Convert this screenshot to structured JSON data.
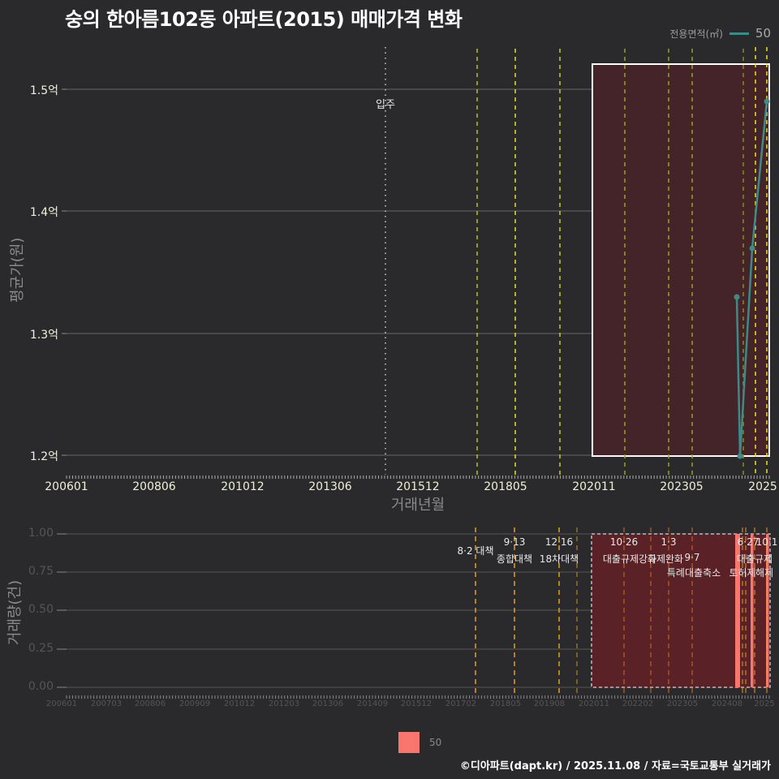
{
  "title": "숭의 한아름102동 아파트(2015) 매매가격 변화",
  "legend_top": {
    "label": "전용면적(㎡)",
    "value": "50",
    "color": "#3d8a88"
  },
  "legend_bottom": {
    "value": "50",
    "color": "#f8766d"
  },
  "footer": "©디아파트(dapt.kr) / 2025.11.08 / 자료=국토교통부 실거래가",
  "upper": {
    "ylabel": "평균가(원)",
    "xlabel": "거래년월",
    "yticks": [
      "1.5억",
      "1.4억",
      "1.3억",
      "1.2억"
    ],
    "xticks": [
      "200601",
      "200806",
      "201012",
      "201306",
      "201512",
      "201805",
      "202011",
      "202305",
      "2025"
    ],
    "annotation": "입주"
  },
  "lower": {
    "ylabel": "거래량(건)",
    "yticks": [
      "1.00",
      "0.75",
      "0.50",
      "0.25",
      "0.00"
    ],
    "xticks": [
      "200601",
      "200703",
      "200806",
      "200909",
      "201012",
      "201203",
      "201306",
      "201409",
      "201512",
      "201702",
      "201805",
      "201908",
      "202011",
      "202202",
      "202305",
      "202408",
      "2025"
    ],
    "annotations": [
      {
        "date": "8·2 대책",
        "text": ""
      },
      {
        "date": "9·13",
        "text": "종합대책"
      },
      {
        "date": "12·16",
        "text": "18차대책"
      },
      {
        "date": "10·26",
        "text": "대출규제강화"
      },
      {
        "date": "1·3",
        "text": "규제완화"
      },
      {
        "date": "9·7",
        "text": "특례대출축소"
      },
      {
        "date": "6·27",
        "text": "대출규제"
      },
      {
        "date": "10·1",
        "text": "토허제"
      },
      {
        "date": "",
        "text": "해제"
      }
    ]
  },
  "chart_data": [
    {
      "type": "line",
      "title": "숭의 한아름102동 아파트(2015) 매매가격 변화",
      "xlabel": "거래년월",
      "ylabel": "평균가(원)",
      "ylim": [
        1.2,
        1.52
      ],
      "y_unit": "억",
      "legend_title": "전용면적(㎡)",
      "series": [
        {
          "name": "50",
          "x": [
            "202408",
            "202409",
            "202501",
            "202505"
          ],
          "values": [
            1.33,
            1.2,
            1.37,
            1.49
          ]
        }
      ],
      "vlines": [
        "201509 입주",
        "201708",
        "201809",
        "201912",
        "202110",
        "202301",
        "202309",
        "202406",
        "202410",
        "202501"
      ],
      "highlight_range": [
        "202011",
        "202505"
      ],
      "grid": true,
      "legend_position": "top-right"
    },
    {
      "type": "bar",
      "xlabel": "",
      "ylabel": "거래량(건)",
      "ylim": [
        0,
        1.0
      ],
      "series": [
        {
          "name": "50",
          "x": [
            "202408",
            "202409",
            "202501",
            "202505"
          ],
          "values": [
            1,
            1,
            1,
            1
          ]
        }
      ],
      "legend_position": "bottom"
    }
  ]
}
